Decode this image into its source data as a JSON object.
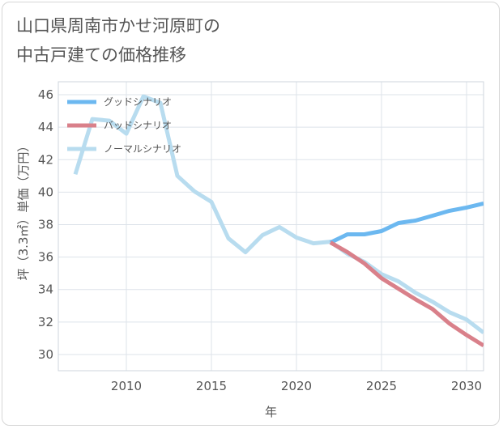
{
  "title_lines": [
    "山口県周南市かせ河原町の",
    "中古戸建ての価格推移"
  ],
  "chart_data": {
    "type": "line",
    "title": "山口県周南市かせ河原町の中古戸建ての価格推移",
    "xlabel": "年",
    "ylabel": "坪（3.3㎡）単価（万円）",
    "xlim": [
      2006,
      2031
    ],
    "ylim": [
      29,
      46.8
    ],
    "xticks": [
      2010,
      2015,
      2020,
      2025,
      2030
    ],
    "yticks": [
      30,
      32,
      34,
      36,
      38,
      40,
      42,
      44,
      46
    ],
    "grid": true,
    "legend_position": "top-left",
    "series": [
      {
        "name": "グッドシナリオ",
        "color": "#6cb8f0",
        "x": [
          2022,
          2023,
          2024,
          2025,
          2026,
          2027,
          2028,
          2029,
          2030,
          2031
        ],
        "values": [
          36.9,
          37.4,
          37.4,
          37.6,
          38.1,
          38.25,
          38.55,
          38.85,
          39.05,
          39.3
        ]
      },
      {
        "name": "バッドシナリオ",
        "color": "#d9808a",
        "x": [
          2022,
          2023,
          2024,
          2025,
          2026,
          2027,
          2028,
          2029,
          2030,
          2031
        ],
        "values": [
          36.9,
          36.3,
          35.6,
          34.7,
          34.05,
          33.4,
          32.8,
          31.9,
          31.2,
          30.55
        ]
      },
      {
        "name": "ノーマルシナリオ",
        "color": "#b8dcef",
        "x": [
          2007,
          2008,
          2009,
          2010,
          2011,
          2012,
          2013,
          2014,
          2015,
          2016,
          2017,
          2018,
          2019,
          2020,
          2021,
          2022,
          2023,
          2024,
          2025,
          2026,
          2027,
          2028,
          2029,
          2030,
          2031
        ],
        "values": [
          41.1,
          44.5,
          44.4,
          43.6,
          45.9,
          45.5,
          41.0,
          40.05,
          39.4,
          37.15,
          36.3,
          37.35,
          37.85,
          37.2,
          36.85,
          36.95,
          36.2,
          35.7,
          34.95,
          34.5,
          33.8,
          33.25,
          32.6,
          32.15,
          31.35
        ]
      }
    ]
  }
}
